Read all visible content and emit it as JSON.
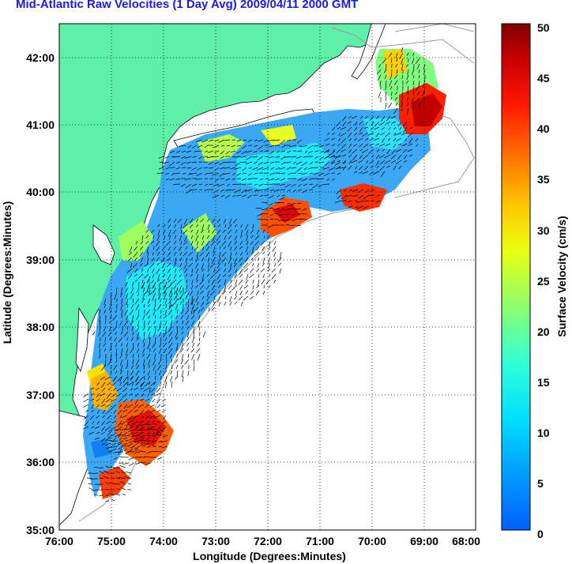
{
  "title": "Mid-Atlantic Raw Velocities (1 Day Avg) 2009/04/11 2000 GMT",
  "map": {
    "xlabel": "Longitude (Degrees:Minutes)",
    "ylabel": "Latitude (Degrees:Minutes)",
    "lon_ticks": [
      {
        "label": "76:00",
        "lon": -76
      },
      {
        "label": "75:00",
        "lon": -75
      },
      {
        "label": "74:00",
        "lon": -74
      },
      {
        "label": "73:00",
        "lon": -73
      },
      {
        "label": "72:00",
        "lon": -72
      },
      {
        "label": "71:00",
        "lon": -71
      },
      {
        "label": "70:00",
        "lon": -70
      },
      {
        "label": "69:00",
        "lon": -69
      },
      {
        "label": "68:00",
        "lon": -68
      }
    ],
    "lat_ticks": [
      {
        "label": "42:00",
        "lat": 42
      },
      {
        "label": "41:00",
        "lat": 41
      },
      {
        "label": "40:00",
        "lat": 40
      },
      {
        "label": "39:00",
        "lat": 39
      },
      {
        "label": "38:00",
        "lat": 38
      },
      {
        "label": "37:00",
        "lat": 37
      },
      {
        "label": "36:00",
        "lat": 36
      },
      {
        "label": "35:00",
        "lat": 35
      }
    ],
    "lon_range": [
      -76,
      -68
    ],
    "lat_range": [
      35,
      42.5
    ],
    "grid": "dotted"
  },
  "colorbar": {
    "label": "Surface Velocity (cm/s)",
    "ticks": [
      "0",
      "5",
      "10",
      "15",
      "20",
      "25",
      "30",
      "35",
      "40",
      "45",
      "50"
    ],
    "range": [
      0,
      50
    ],
    "colormap": [
      "#0060ff",
      "#00b4ff",
      "#00f0ff",
      "#40ffd0",
      "#a0ff60",
      "#ffff00",
      "#ffa000",
      "#ff3000",
      "#c00000",
      "#800000"
    ]
  },
  "colors": {
    "land": "#5ef0a8",
    "title": "#1a1ae6",
    "bathymetry": "#9a9a9a"
  }
}
